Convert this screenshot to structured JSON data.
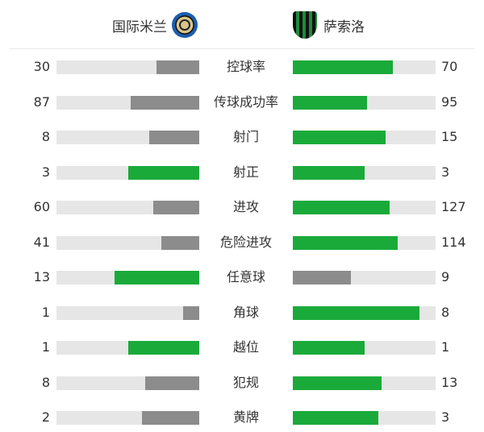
{
  "teams": {
    "home": "国际米兰",
    "away": "萨索洛",
    "home_logo": "inter-milan-crest",
    "away_logo": "sassuolo-crest"
  },
  "colors": {
    "leader": "#1aaa3a",
    "trailer": "#8c8c8c",
    "track": "#e6e6e6"
  },
  "stats": [
    {
      "label": "控球率",
      "home": 30,
      "away": 70
    },
    {
      "label": "传球成功率",
      "home": 87,
      "away": 95
    },
    {
      "label": "射门",
      "home": 8,
      "away": 15
    },
    {
      "label": "射正",
      "home": 3,
      "away": 3
    },
    {
      "label": "进攻",
      "home": 60,
      "away": 127
    },
    {
      "label": "危险进攻",
      "home": 41,
      "away": 114
    },
    {
      "label": "任意球",
      "home": 13,
      "away": 9
    },
    {
      "label": "角球",
      "home": 1,
      "away": 8
    },
    {
      "label": "越位",
      "home": 1,
      "away": 1
    },
    {
      "label": "犯规",
      "home": 8,
      "away": 13
    },
    {
      "label": "黄牌",
      "home": 2,
      "away": 3
    }
  ]
}
